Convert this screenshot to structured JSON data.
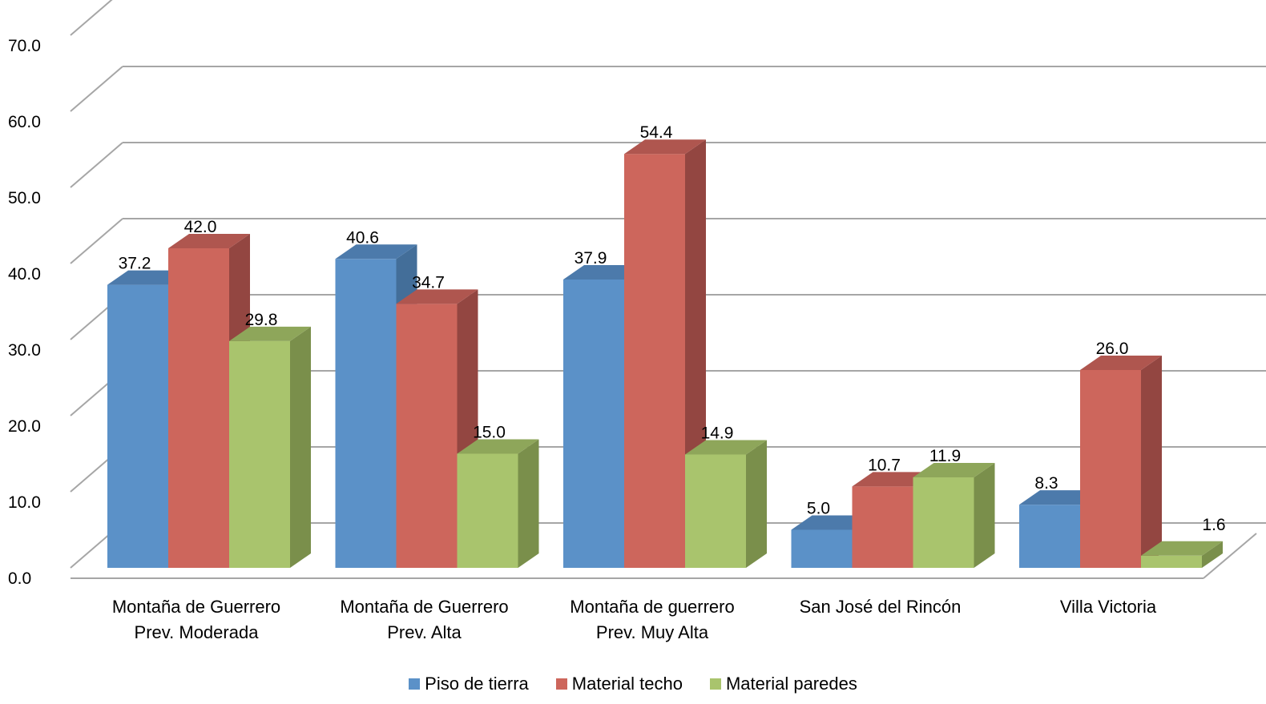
{
  "chart_data": {
    "type": "bar",
    "style": "3d-clustered-column",
    "title": "",
    "xlabel": "",
    "ylabel": "",
    "ylim": [
      0,
      70
    ],
    "y_ticks": [
      "0.0",
      "10.0",
      "20.0",
      "30.0",
      "40.0",
      "50.0",
      "60.0",
      "70.0"
    ],
    "grid": true,
    "legend_position": "bottom",
    "categories": [
      [
        "Montaña de Guerrero",
        "Prev. Moderada"
      ],
      [
        "Montaña de Guerrero",
        "Prev. Alta"
      ],
      [
        "Montaña de guerrero",
        "Prev. Muy Alta"
      ],
      [
        "San José del Rincón"
      ],
      [
        "Villa Victoria"
      ]
    ],
    "series": [
      {
        "name": "Piso de tierra",
        "color": "#5B91C8",
        "side_color": "#436E99",
        "top_color": "#4C7AAB",
        "values": [
          37.2,
          40.6,
          37.9,
          5.0,
          8.3
        ],
        "labels": [
          "37.2",
          "40.6",
          "37.9",
          "5.0",
          "8.3"
        ]
      },
      {
        "name": "Material techo",
        "color": "#CD665C",
        "side_color": "#934641",
        "top_color": "#AF564F",
        "values": [
          42.0,
          34.7,
          54.4,
          10.7,
          26.0
        ],
        "labels": [
          "42.0",
          "34.7",
          "54.4",
          "10.7",
          "26.0"
        ]
      },
      {
        "name": "Material paredes",
        "color": "#A9C46D",
        "side_color": "#7A8F4B",
        "top_color": "#8EA65A",
        "values": [
          29.8,
          15.0,
          14.9,
          11.9,
          1.6
        ],
        "labels": [
          "29.8",
          "15.0",
          "14.9",
          "11.9",
          "1.6"
        ]
      }
    ]
  }
}
